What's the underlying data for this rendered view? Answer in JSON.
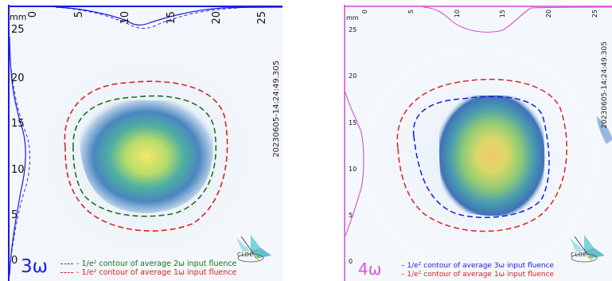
{
  "panels": [
    {
      "id": "left",
      "axis_unit": "mm",
      "x_ticks": [
        "0",
        "5",
        "10",
        "15",
        "20",
        "25"
      ],
      "y_ticks": [
        "25",
        "20",
        "15",
        "10",
        "5",
        "0"
      ],
      "timestamp": "20230605-14:24:49.305",
      "harmonic_label": "3ω",
      "legend": [
        {
          "text": "- 1/e² contour of average 2ω input fluence",
          "color": "#1f6e1f"
        },
        {
          "text": "- 1/e² contour of average 1ω input fluence",
          "color": "#e02020"
        }
      ],
      "profile_color": "#1a1ae6",
      "logo_text": "CLOE"
    },
    {
      "id": "right",
      "axis_unit": "mm",
      "x_ticks": [
        "0",
        "5",
        "10",
        "15",
        "20",
        "25"
      ],
      "y_ticks": [
        "25",
        "20",
        "15",
        "10",
        "5",
        "0"
      ],
      "timestamp": "20230605-14:24:49.305",
      "harmonic_label": "4ω",
      "legend": [
        {
          "text": "– 1/e² contour of average 3ω input fluence",
          "color": "#1a1ae6"
        },
        {
          "text": "– 1/e² contour of average 1ω input fluence",
          "color": "#e02020"
        }
      ],
      "profile_color": "#d64bd6",
      "logo_text": "CLOE"
    }
  ]
}
